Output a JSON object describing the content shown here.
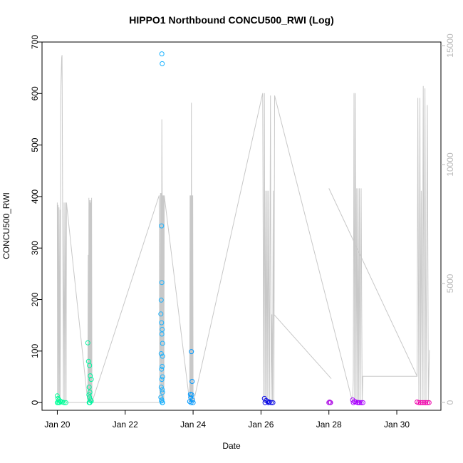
{
  "chart_data": {
    "type": "scatter",
    "title": "HIPPO1 Northbound CONCU500_RWI (Log)",
    "xlabel": "Date",
    "ylabel": "CONCU500_RWI",
    "x_ticks": [
      "Jan 20",
      "Jan 22",
      "Jan 24",
      "Jan 26",
      "Jan 28",
      "Jan 30"
    ],
    "x_tick_days": [
      20,
      22,
      24,
      26,
      28,
      30
    ],
    "xlim": [
      19.55,
      31.3
    ],
    "y_ticks": [
      0,
      100,
      200,
      300,
      400,
      500,
      600,
      700
    ],
    "ylim": [
      -15,
      700
    ],
    "y2_ticks": [
      0,
      5000,
      10000,
      15000
    ],
    "y2lim": [
      -330,
      15150
    ],
    "grid": false,
    "colors": {
      "flight1": "#00ff99",
      "flight2": "#00f5a0",
      "flight3": "#1ab2ff",
      "flight4": "#0099ff",
      "flight5": "#0a0ae6",
      "flight6": "#b21ae6",
      "flight7": "#aa00ff",
      "flight8": "#ee00aa",
      "altitude_line": "#c8c8c8"
    },
    "series": [
      {
        "color_key": "flight1",
        "x": [
          20.0,
          20.02,
          20.05,
          20.08,
          20.1,
          20.15,
          20.2,
          20.25,
          20.0,
          20.03,
          20.06
        ],
        "y": [
          13,
          8,
          5,
          3,
          2,
          1,
          0,
          0,
          0,
          0,
          0
        ]
      },
      {
        "color_key": "flight2",
        "x": [
          20.9,
          20.92,
          20.95,
          20.97,
          21.0,
          20.94,
          20.96,
          20.93,
          20.95,
          20.98,
          21.0,
          20.95,
          20.96,
          20.94
        ],
        "y": [
          116,
          80,
          72,
          52,
          45,
          30,
          20,
          15,
          10,
          5,
          3,
          0,
          0,
          0
        ]
      },
      {
        "color_key": "flight3",
        "x": [
          23.08,
          23.09,
          23.07,
          23.08,
          23.06,
          23.05,
          23.07,
          23.09,
          23.08,
          23.1,
          23.06,
          23.1,
          23.09,
          23.07,
          23.1,
          23.08,
          23.06,
          23.09,
          23.1,
          23.05,
          23.08,
          23.07,
          23.1,
          23.09
        ],
        "y": [
          677,
          658,
          343,
          233,
          199,
          172,
          155,
          142,
          133,
          115,
          95,
          90,
          70,
          65,
          50,
          45,
          30,
          25,
          20,
          10,
          5,
          3,
          0,
          0
        ]
      },
      {
        "color_key": "flight4",
        "x": [
          23.95,
          23.97,
          23.92,
          23.96,
          23.93,
          23.98,
          23.9,
          24.0,
          23.94
        ],
        "y": [
          99,
          41,
          16,
          15,
          10,
          5,
          2,
          0,
          0
        ]
      },
      {
        "color_key": "flight5",
        "x": [
          26.1,
          26.15,
          26.2,
          26.25,
          26.3,
          26.35,
          26.12,
          26.22
        ],
        "y": [
          8,
          4,
          2,
          1,
          0,
          0,
          0,
          0
        ]
      },
      {
        "color_key": "flight6",
        "x": [
          28.02,
          28.05,
          28.0,
          28.04
        ],
        "y": [
          1,
          0,
          0,
          0
        ]
      },
      {
        "color_key": "flight7",
        "x": [
          28.7,
          28.75,
          28.8,
          28.85,
          28.9,
          28.95,
          29.0,
          28.72,
          28.88
        ],
        "y": [
          5,
          2,
          1,
          0,
          0,
          0,
          0,
          0,
          0
        ]
      },
      {
        "color_key": "flight8",
        "x": [
          30.6,
          30.65,
          30.7,
          30.75,
          30.8,
          30.85,
          30.9,
          30.95
        ],
        "y": [
          1,
          0,
          0,
          0,
          0,
          0,
          0,
          0
        ]
      }
    ],
    "altitude_series": {
      "color_key": "altitude_line",
      "axis": "right",
      "x": [
        20.0,
        20.01,
        20.02,
        20.03,
        20.05,
        20.06,
        20.08,
        20.09,
        20.1,
        20.11,
        20.13,
        20.14,
        20.18,
        20.2,
        20.22,
        20.24,
        20.26,
        20.27,
        20.9,
        20.91,
        20.92,
        20.93,
        20.94,
        20.95,
        20.96,
        20.97,
        20.98,
        20.99,
        21.0,
        21.01,
        21.02,
        23.0,
        23.02,
        23.04,
        23.05,
        23.06,
        23.07,
        23.08,
        23.09,
        23.1,
        23.11,
        23.12,
        23.13,
        23.14,
        23.15,
        23.9,
        23.91,
        23.92,
        23.93,
        23.94,
        23.95,
        23.96,
        23.97,
        23.98,
        23.99,
        24.0,
        24.01,
        26.05,
        26.08,
        26.1,
        26.12,
        26.14,
        26.16,
        26.18,
        26.2,
        26.22,
        26.25,
        26.28,
        26.3,
        26.32,
        26.34,
        26.36,
        26.38,
        26.4,
        28.7,
        28.72,
        28.74,
        28.76,
        28.78,
        28.8,
        28.82,
        28.84,
        28.86,
        28.88,
        28.9,
        28.92,
        28.95,
        28.98,
        29.0,
        30.6,
        30.62,
        30.65,
        30.68,
        30.7,
        30.72,
        30.75,
        30.78,
        30.8,
        30.83,
        30.86,
        30.9,
        30.93,
        30.96
      ],
      "y": [
        8400,
        0,
        8300,
        0,
        8200,
        0,
        8100,
        0,
        12800,
        13500,
        14500,
        14600,
        0,
        8400,
        0,
        8400,
        0,
        8400,
        0,
        6200,
        0,
        8600,
        0,
        8500,
        0,
        8400,
        0,
        8500,
        0,
        8600,
        0,
        8700,
        0,
        8800,
        0,
        8800,
        0,
        11900,
        8700,
        0,
        8700,
        0,
        8700,
        0,
        8700,
        0,
        8700,
        0,
        8700,
        0,
        12600,
        0,
        8700,
        0,
        8700,
        0,
        0,
        13000,
        0,
        13000,
        0,
        8900,
        0,
        8900,
        0,
        8900,
        0,
        12900,
        0,
        3700,
        0,
        8900,
        0,
        12900,
        0,
        1000,
        13000,
        0,
        13000,
        0,
        9000,
        0,
        9000,
        0,
        9000,
        0,
        9000,
        0,
        1100,
        1100,
        12800,
        0,
        12800,
        0,
        8900,
        0,
        13300,
        0,
        13200,
        0,
        12500,
        0,
        2200
      ],
      "connectors": [
        {
          "x": [
            20.27,
            20.9
          ],
          "y": [
            0,
            0
          ]
        },
        {
          "x": [
            21.02,
            23.0
          ],
          "y": [
            0,
            0
          ]
        },
        {
          "x": [
            26.38,
            28.07
          ],
          "y": [
            3700,
            1000
          ]
        },
        {
          "x": [
            28.0,
            30.6
          ],
          "y": [
            9000,
            1100
          ]
        }
      ]
    }
  }
}
